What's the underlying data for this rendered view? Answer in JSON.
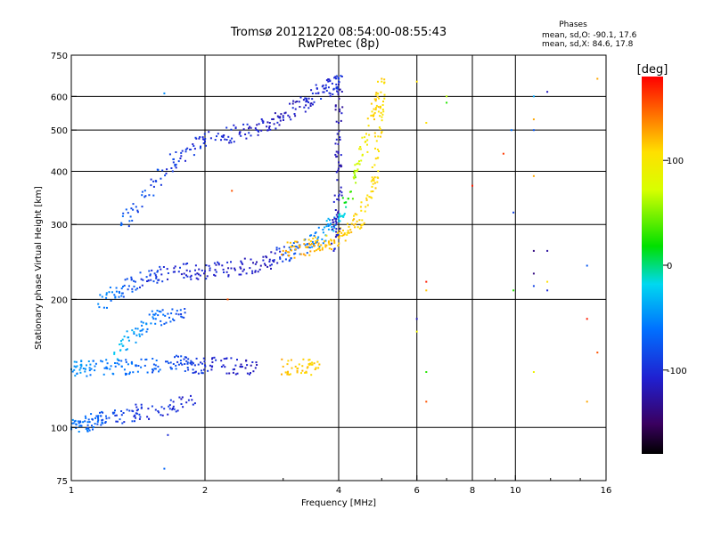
{
  "chart_data": {
    "type": "scatter",
    "title": "Tromsø 20121220 08:54:00-08:55:43",
    "subtitle": "RwPretec (8p)",
    "xlabel": "Frequency [MHz]",
    "ylabel": "Stationary phase Virtual Height [km]",
    "x_scale": "log",
    "y_scale": "log",
    "xlim": [
      1,
      16
    ],
    "ylim": [
      75,
      750
    ],
    "x_ticks": [
      1,
      2,
      4,
      6,
      8,
      10,
      16
    ],
    "y_ticks": [
      75,
      100,
      200,
      300,
      400,
      500,
      600,
      750
    ],
    "grid": true,
    "stats": {
      "header": "Phases",
      "line_o": "mean, sd,O: -90.1, 17.6",
      "line_x": "mean, sd,X:  84.6, 17.8"
    },
    "colorbar": {
      "label": "[deg]",
      "range": [
        -180,
        180
      ],
      "ticks": [
        "100",
        "0",
        "-100"
      ],
      "tick_values": [
        100,
        0,
        -100
      ]
    },
    "traces": [
      {
        "x": [
          1.0,
          1.05,
          1.1,
          1.15,
          1.2,
          1.3,
          1.4,
          1.55,
          1.7,
          1.9
        ],
        "y": [
          100,
          101,
          103,
          104,
          105,
          107,
          108,
          110,
          112,
          114
        ],
        "phase": [
          -75,
          -80,
          -85,
          -90,
          -95,
          -100,
          -105,
          -108,
          -110,
          -112
        ]
      },
      {
        "x": [
          1.0,
          1.05,
          1.1,
          1.2,
          1.3,
          1.4,
          1.55,
          1.7,
          1.8,
          1.9,
          2.0,
          2.2,
          2.4,
          2.6
        ],
        "y": [
          137,
          138,
          138,
          138,
          139,
          140,
          140,
          141,
          141,
          140,
          140,
          140,
          139,
          138
        ],
        "phase": [
          -65,
          -70,
          -72,
          -75,
          -78,
          -82,
          -88,
          -95,
          -100,
          -105,
          -110,
          -115,
          -118,
          -120
        ]
      },
      {
        "x": [
          3.0,
          3.2,
          3.4,
          3.6
        ],
        "y": [
          139,
          139,
          138,
          138
        ],
        "phase": [
          115,
          110,
          108,
          105
        ]
      },
      {
        "x": [
          1.15,
          1.25,
          1.35,
          1.45,
          1.55,
          1.7,
          1.85,
          2.0,
          2.2,
          2.4,
          2.6,
          2.8,
          3.0,
          3.2,
          3.4,
          3.6,
          3.8,
          4.0,
          4.2,
          4.4,
          4.6,
          4.8,
          5.0
        ],
        "y": [
          195,
          205,
          215,
          222,
          228,
          232,
          233,
          233,
          235,
          238,
          242,
          248,
          255,
          262,
          270,
          280,
          292,
          310,
          345,
          400,
          470,
          560,
          660
        ],
        "phase": [
          -70,
          -80,
          -90,
          -100,
          -105,
          -110,
          -112,
          -114,
          -116,
          -118,
          -120,
          -118,
          -100,
          -90,
          -80,
          -70,
          -60,
          -50,
          10,
          60,
          90,
          105,
          110
        ]
      },
      {
        "x": [
          3.0,
          3.2,
          3.4,
          3.6,
          3.8,
          4.0,
          4.2,
          4.4,
          4.6,
          4.8,
          4.9,
          4.95,
          5.0
        ],
        "y": [
          260,
          262,
          265,
          268,
          272,
          280,
          290,
          305,
          330,
          380,
          450,
          540,
          650
        ],
        "phase": [
          120,
          118,
          116,
          114,
          112,
          110,
          108,
          106,
          104,
          102,
          100,
          98,
          96
        ]
      },
      {
        "x": [
          1.3,
          1.4,
          1.55,
          1.7,
          1.85,
          2.0,
          2.2,
          2.4,
          2.6,
          2.8,
          3.0,
          3.2,
          3.4,
          3.6,
          3.8,
          3.95,
          4.0
        ],
        "y": [
          300,
          330,
          380,
          420,
          450,
          470,
          485,
          495,
          505,
          520,
          540,
          560,
          585,
          610,
          630,
          640,
          650
        ],
        "phase": [
          -90,
          -95,
          -100,
          -105,
          -108,
          -110,
          -112,
          -114,
          -116,
          -118,
          -120,
          -118,
          -115,
          -112,
          -110,
          -108,
          -105
        ]
      },
      {
        "x": [
          3.9,
          3.95,
          4.0,
          4.0,
          4.0,
          4.0
        ],
        "y": [
          260,
          300,
          350,
          420,
          520,
          640
        ],
        "phase": [
          -115,
          -118,
          -120,
          -122,
          -124,
          -126
        ]
      },
      {
        "x": [
          1.25,
          1.35,
          1.45,
          1.55,
          1.65,
          1.8
        ],
        "y": [
          150,
          160,
          170,
          180,
          185,
          190
        ],
        "phase": [
          -50,
          -60,
          -70,
          -80,
          -90,
          -100
        ]
      }
    ],
    "noise": [
      {
        "x": 1.62,
        "y": 610,
        "phase": -70
      },
      {
        "x": 1.62,
        "y": 80,
        "phase": -85
      },
      {
        "x": 1.65,
        "y": 96,
        "phase": -110
      },
      {
        "x": 2.3,
        "y": 360,
        "phase": 150
      },
      {
        "x": 2.25,
        "y": 200,
        "phase": 150
      },
      {
        "x": 6.0,
        "y": 650,
        "phase": 100
      },
      {
        "x": 6.0,
        "y": 180,
        "phase": -120
      },
      {
        "x": 6.0,
        "y": 168,
        "phase": 80
      },
      {
        "x": 6.3,
        "y": 520,
        "phase": 100
      },
      {
        "x": 6.3,
        "y": 220,
        "phase": 170
      },
      {
        "x": 6.3,
        "y": 210,
        "phase": 110
      },
      {
        "x": 6.3,
        "y": 135,
        "phase": 10
      },
      {
        "x": 6.3,
        "y": 115,
        "phase": 150
      },
      {
        "x": 7.0,
        "y": 600,
        "phase": 50
      },
      {
        "x": 7.0,
        "y": 580,
        "phase": 10
      },
      {
        "x": 8.0,
        "y": 370,
        "phase": 170
      },
      {
        "x": 9.4,
        "y": 440,
        "phase": 160
      },
      {
        "x": 9.8,
        "y": 500,
        "phase": -80
      },
      {
        "x": 9.9,
        "y": 320,
        "phase": -100
      },
      {
        "x": 9.9,
        "y": 210,
        "phase": 10
      },
      {
        "x": 11.0,
        "y": 600,
        "phase": -60
      },
      {
        "x": 11.0,
        "y": 500,
        "phase": -90
      },
      {
        "x": 11.0,
        "y": 530,
        "phase": 120
      },
      {
        "x": 11.0,
        "y": 390,
        "phase": 120
      },
      {
        "x": 11.0,
        "y": 260,
        "phase": -140
      },
      {
        "x": 11.0,
        "y": 230,
        "phase": -140
      },
      {
        "x": 11.0,
        "y": 215,
        "phase": -100
      },
      {
        "x": 11.0,
        "y": 135,
        "phase": 80
      },
      {
        "x": 11.8,
        "y": 615,
        "phase": -120
      },
      {
        "x": 11.8,
        "y": 260,
        "phase": -130
      },
      {
        "x": 11.8,
        "y": 220,
        "phase": 100
      },
      {
        "x": 11.8,
        "y": 210,
        "phase": -110
      },
      {
        "x": 14.5,
        "y": 240,
        "phase": -90
      },
      {
        "x": 14.5,
        "y": 180,
        "phase": 170
      },
      {
        "x": 14.5,
        "y": 115,
        "phase": 120
      },
      {
        "x": 15.3,
        "y": 660,
        "phase": 120
      },
      {
        "x": 15.3,
        "y": 150,
        "phase": 150
      }
    ]
  }
}
